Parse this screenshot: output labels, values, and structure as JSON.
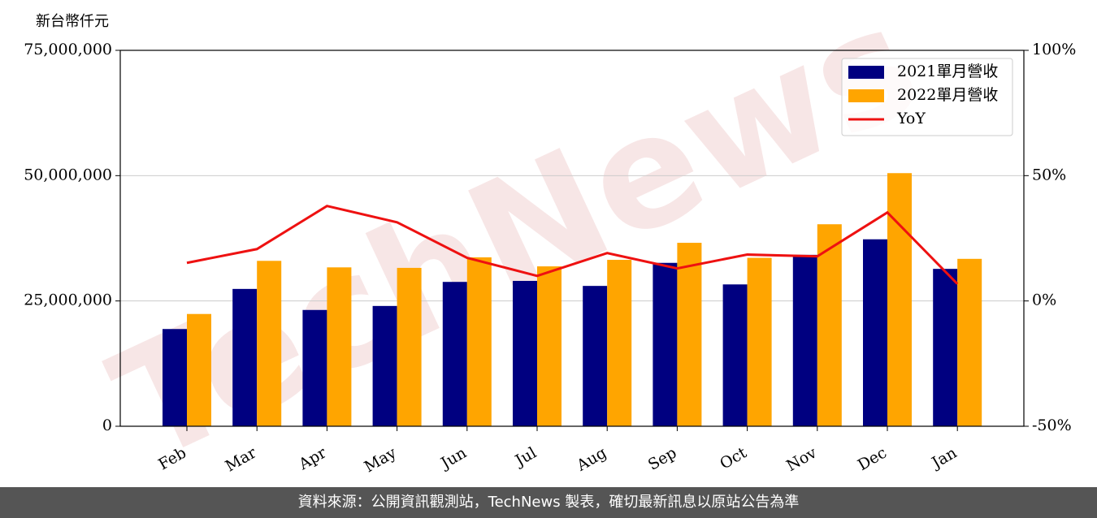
{
  "chart_data": {
    "type": "bar",
    "y_label": "新台幣仟元",
    "watermark": "TechNews",
    "categories": [
      "Feb",
      "Mar",
      "Apr",
      "May",
      "Jun",
      "Jul",
      "Aug",
      "Sep",
      "Oct",
      "Nov",
      "Dec",
      "Jan"
    ],
    "series": [
      {
        "name": "2021單月營收",
        "color": "#000080",
        "values": [
          19400000,
          27400000,
          23200000,
          24000000,
          28800000,
          29000000,
          28000000,
          32600000,
          28300000,
          34200000,
          37300000,
          31400000
        ]
      },
      {
        "name": "2022單月營收",
        "color": "#ffa500",
        "values": [
          22400000,
          33000000,
          31700000,
          31600000,
          33700000,
          31900000,
          33200000,
          36600000,
          33600000,
          40300000,
          50500000,
          33400000
        ]
      },
      {
        "name": "YoY",
        "type": "line",
        "axis": "y2",
        "color": "#ee1111",
        "values": [
          15.2,
          20.7,
          37.9,
          31.4,
          17.2,
          10.0,
          19.1,
          13.0,
          18.5,
          17.8,
          35.3,
          6.8
        ]
      }
    ],
    "ylim": [
      0,
      75000000
    ],
    "yticks": [
      0,
      {
        "value": 25000000,
        "label": "25,000,000"
      },
      {
        "value": 50000000,
        "label": "50,000,000"
      },
      {
        "value": 75000000,
        "label": "75,000,000"
      }
    ],
    "y2lim": [
      -50,
      100
    ],
    "y2ticks": [
      {
        "value": -50,
        "label": "-50%"
      },
      {
        "value": 0,
        "label": "0%"
      },
      {
        "value": 50,
        "label": "50%"
      },
      {
        "value": 100,
        "label": "100%"
      }
    ],
    "grid": true,
    "legend": "upper right"
  },
  "footer": "資料來源：公開資訊觀測站，TechNews 製表，確切最新訊息以原站公告為準"
}
